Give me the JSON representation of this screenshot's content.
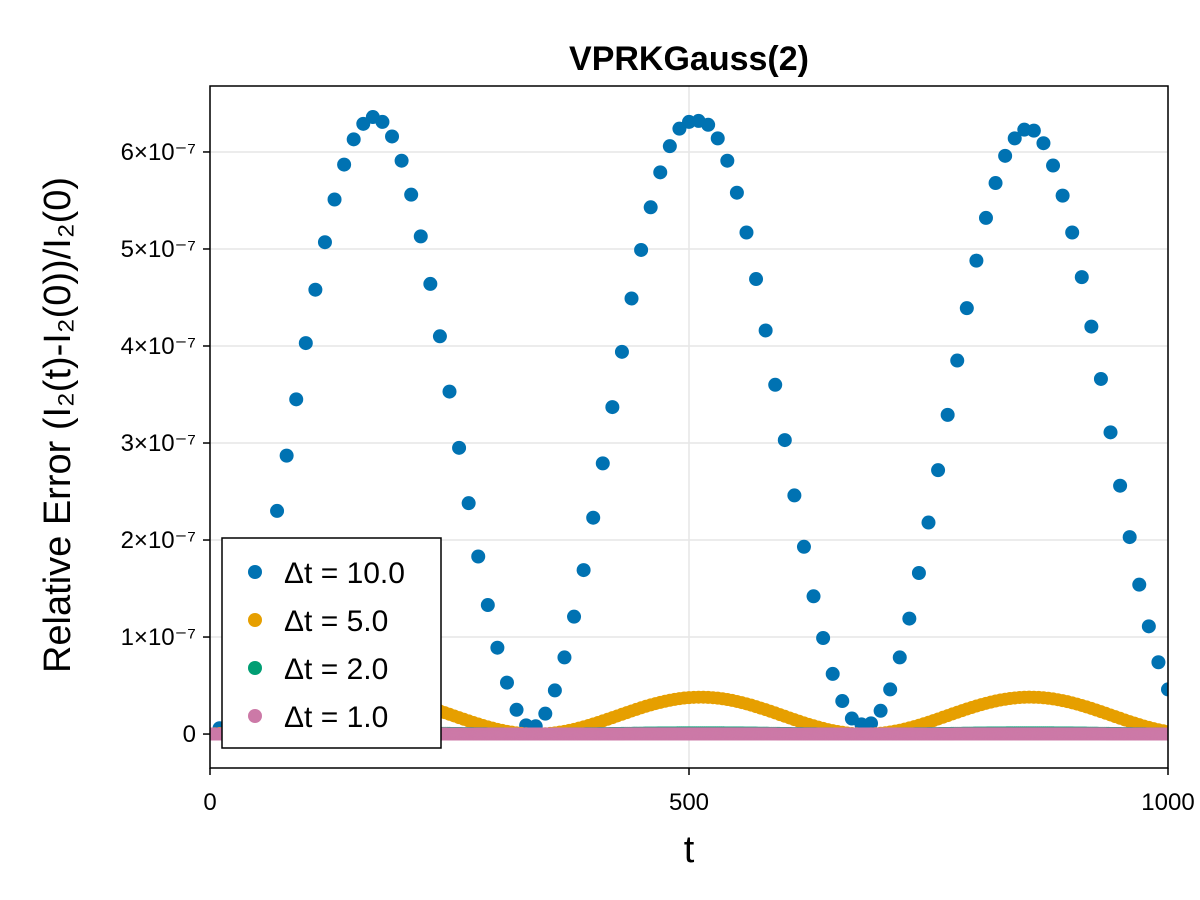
{
  "chart_data": {
    "type": "scatter",
    "title": "VPRKGauss(2)",
    "xlabel": "t",
    "ylabel": "Relative Error (I₂(t)-I₂(0))/I₂(0)",
    "xlim": [
      0,
      1000
    ],
    "ylim": [
      -3.5e-08,
      6.68e-07
    ],
    "x_ticks": [
      {
        "value": 0,
        "label": "0"
      },
      {
        "value": 500,
        "label": "500"
      },
      {
        "value": 1000,
        "label": "1000"
      }
    ],
    "y_ticks": [
      {
        "value": 0,
        "label": "0"
      },
      {
        "value": 1e-07,
        "label": "1×10⁻⁷"
      },
      {
        "value": 2e-07,
        "label": "2×10⁻⁷"
      },
      {
        "value": 3e-07,
        "label": "3×10⁻⁷"
      },
      {
        "value": 4e-07,
        "label": "4×10⁻⁷"
      },
      {
        "value": 5e-07,
        "label": "5×10⁻⁷"
      },
      {
        "value": 6e-07,
        "label": "6×10⁻⁷"
      }
    ],
    "grid": true,
    "legend_position": "bottom-left",
    "series": [
      {
        "name": "Δt = 10.0",
        "color": "#0072b2",
        "dt": 10,
        "x": [
          10,
          20,
          30,
          40,
          50,
          60,
          70,
          80,
          90,
          100,
          110,
          120,
          130,
          140,
          150,
          160,
          170,
          180,
          190,
          200,
          210,
          220,
          230,
          240,
          250,
          260,
          270,
          280,
          290,
          300,
          310,
          320,
          330,
          340,
          350,
          360,
          370,
          380,
          390,
          400,
          410,
          420,
          430,
          440,
          450,
          460,
          470,
          480,
          490,
          500,
          510,
          520,
          530,
          540,
          550,
          560,
          570,
          580,
          590,
          600,
          610,
          620,
          630,
          640,
          650,
          660,
          670,
          680,
          690,
          700,
          710,
          720,
          730,
          740,
          750,
          760,
          770,
          780,
          790,
          800,
          810,
          820,
          830,
          840,
          850,
          860,
          870,
          880,
          890,
          900,
          910,
          920,
          930,
          940,
          950,
          960,
          970,
          980,
          990,
          1000
        ],
        "y": [
          6e-09,
          2.3e-08,
          5.1e-08,
          8.9e-08,
          1.33e-07,
          1.82e-07,
          2.3e-07,
          2.87e-07,
          3.45e-07,
          4.03e-07,
          4.58e-07,
          5.07e-07,
          5.51e-07,
          5.87e-07,
          6.13e-07,
          6.29e-07,
          6.36e-07,
          6.31e-07,
          6.16e-07,
          5.91e-07,
          5.56e-07,
          5.13e-07,
          4.64e-07,
          4.1e-07,
          3.53e-07,
          2.95e-07,
          2.38e-07,
          1.83e-07,
          1.33e-07,
          8.9e-08,
          5.3e-08,
          2.5e-08,
          9e-09,
          8e-09,
          2.1e-08,
          4.5e-08,
          7.9e-08,
          1.21e-07,
          1.69e-07,
          2.23e-07,
          2.79e-07,
          3.37e-07,
          3.94e-07,
          4.49e-07,
          4.99e-07,
          5.43e-07,
          5.79e-07,
          6.06e-07,
          6.24e-07,
          6.31e-07,
          6.32e-07,
          6.28e-07,
          6.14e-07,
          5.91e-07,
          5.58e-07,
          5.17e-07,
          4.69e-07,
          4.16e-07,
          3.6e-07,
          3.03e-07,
          2.46e-07,
          1.93e-07,
          1.42e-07,
          9.9e-08,
          6.2e-08,
          3.4e-08,
          1.6e-08,
          1e-08,
          1.1e-08,
          2.4e-08,
          4.6e-08,
          7.9e-08,
          1.19e-07,
          1.66e-07,
          2.18e-07,
          2.72e-07,
          3.29e-07,
          3.85e-07,
          4.39e-07,
          4.88e-07,
          5.32e-07,
          5.68e-07,
          5.96e-07,
          6.14e-07,
          6.23e-07,
          6.22e-07,
          6.09e-07,
          5.86e-07,
          5.55e-07,
          5.17e-07,
          4.71e-07,
          4.2e-07,
          3.66e-07,
          3.11e-07,
          2.56e-07,
          2.03e-07,
          1.54e-07,
          1.11e-07,
          7.4e-08,
          4.6e-08
        ]
      },
      {
        "name": "Δt = 5.0",
        "color": "#e69f00",
        "dt": 5,
        "amplitude": 3.8e-08,
        "period": 344,
        "phase": 168
      },
      {
        "name": "Δt = 2.0",
        "color": "#009e73",
        "dt": 2,
        "amplitude": 1.2e-09,
        "period": 344,
        "phase": 168
      },
      {
        "name": "Δt = 1.0",
        "color": "#cc79a7",
        "dt": 1,
        "amplitude": 2e-10,
        "period": 344,
        "phase": 168
      }
    ]
  }
}
